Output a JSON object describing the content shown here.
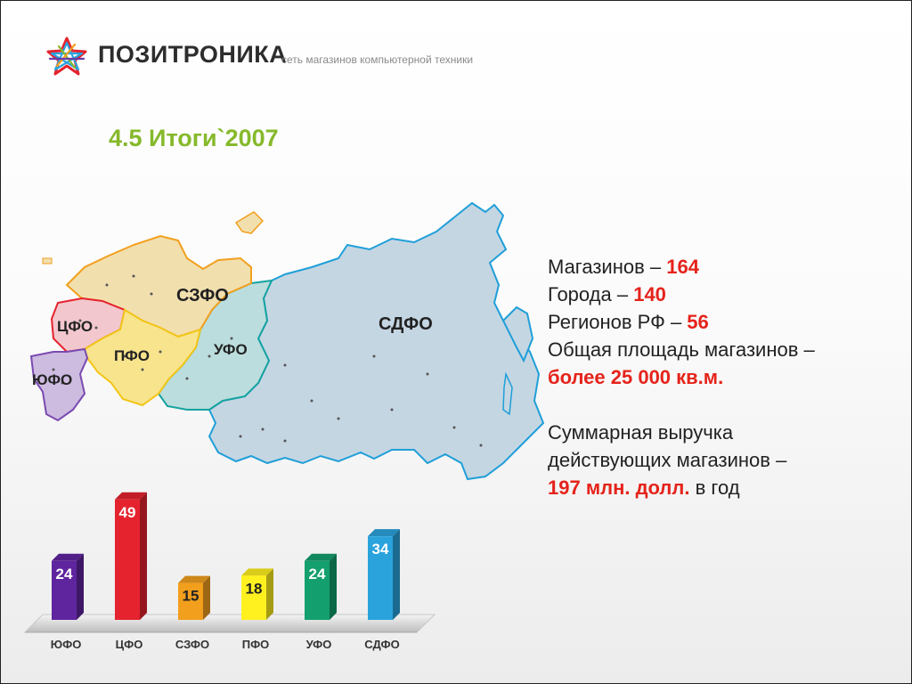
{
  "header": {
    "brand": "ПОЗИТРОНИКА",
    "tagline": "сеть магазинов компьютерной техники",
    "logo_icon": "star-logo-icon"
  },
  "slide": {
    "title": "4.5 Итоги`2007"
  },
  "map": {
    "region_labels": [
      "СЗФО",
      "ЦФО",
      "ПФО",
      "ЮФО",
      "УФО",
      "СДФО"
    ],
    "region_colors": {
      "СЗФО": "#f1dfae",
      "ЦФО": "#f2c7cd",
      "ПФО": "#f7e48d",
      "ЮФО": "#cdbbe0",
      "УФО": "#bcdddd",
      "СДФО": "#c5d6e3"
    }
  },
  "stats": {
    "stores_label": "Магазинов – ",
    "stores_value": "164",
    "cities_label": "Города – ",
    "cities_value": "140",
    "regions_label": "Регионов РФ – ",
    "regions_value": "56",
    "area_label": "Общая площадь магазинов –",
    "area_value": "более 25 000 кв.м.",
    "revenue_line1": "Суммарная выручка",
    "revenue_line2": "действующих магазинов –",
    "revenue_value": "197 млн. долл.",
    "revenue_suffix": " в год"
  },
  "chart_data": {
    "type": "bar",
    "title": "",
    "xlabel": "",
    "ylabel": "",
    "categories": [
      "ЮФО",
      "ЦФО",
      "СЗФО",
      "ПФО",
      "УФО",
      "СДФО"
    ],
    "values": [
      24,
      49,
      15,
      18,
      24,
      34
    ],
    "colors": [
      "#5f259f",
      "#e5232e",
      "#f29f1d",
      "#fff01f",
      "#14a06e",
      "#2aa3dd"
    ],
    "ylim": [
      0,
      50
    ],
    "grid": false,
    "legend": "none"
  }
}
